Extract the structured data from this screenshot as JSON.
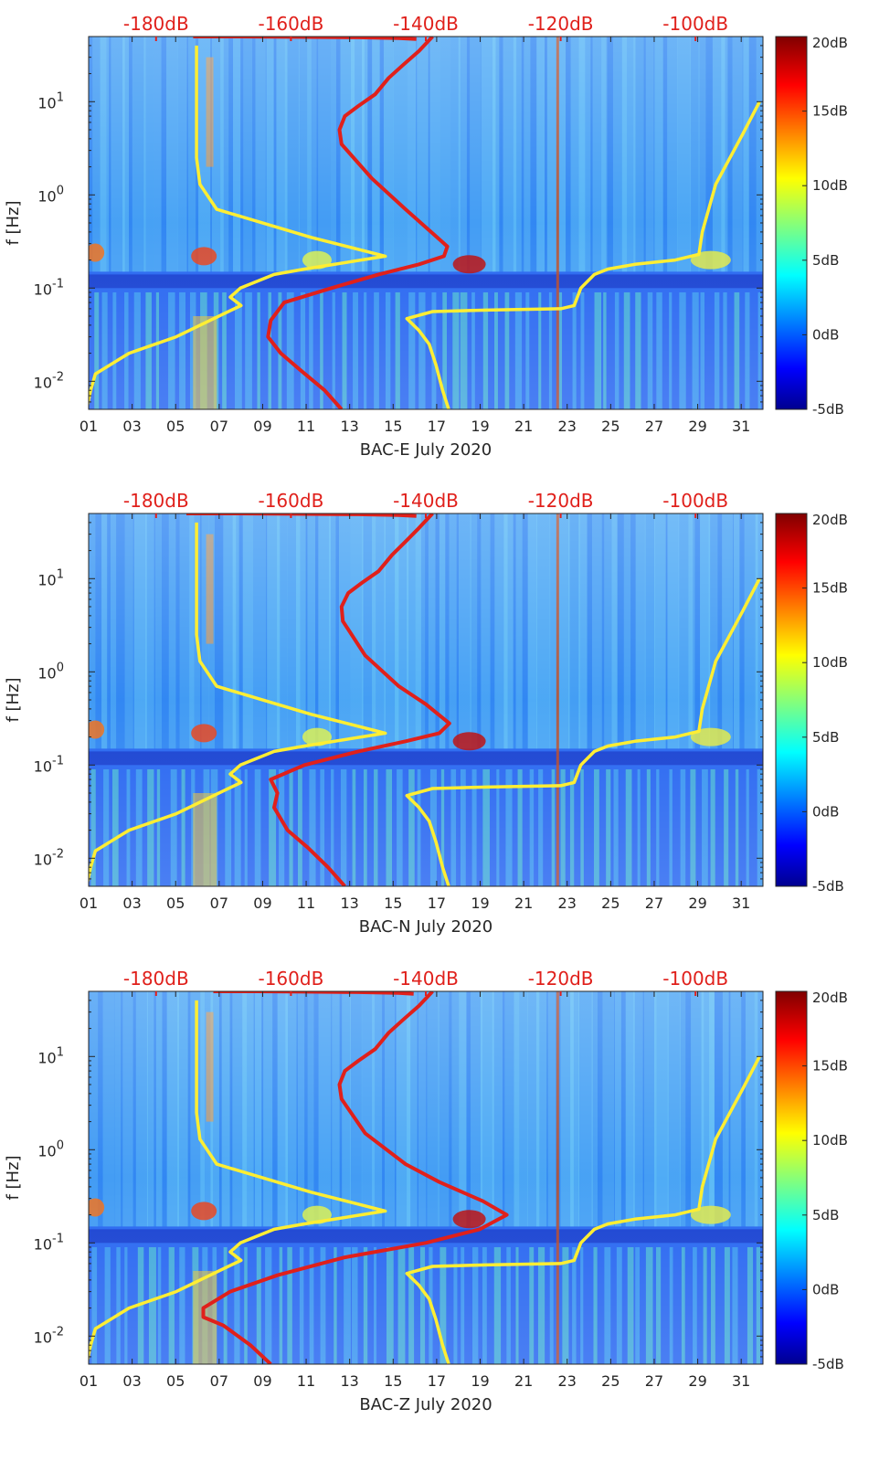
{
  "chart_data": [
    {
      "type": "heatmap",
      "xlabel": "BAC-E July 2020",
      "ylabel": "f [Hz]",
      "x_ticks": [
        "01",
        "03",
        "05",
        "07",
        "09",
        "11",
        "13",
        "15",
        "17",
        "19",
        "21",
        "23",
        "25",
        "27",
        "29",
        "31"
      ],
      "x_range": [
        1,
        32
      ],
      "y_scale": "log",
      "y_range": [
        0.005,
        50
      ],
      "y_ticks": [
        {
          "value": 0.01,
          "base": "10",
          "exp": "-2"
        },
        {
          "value": 0.1,
          "base": "10",
          "exp": "-1"
        },
        {
          "value": 1,
          "base": "10",
          "exp": "0"
        },
        {
          "value": 10,
          "base": "10",
          "exp": "1"
        }
      ],
      "top_axis_labels": [
        "-180dB",
        "-160dB",
        "-140dB",
        "-120dB",
        "-100dB"
      ],
      "top_axis_range_db": [
        -190,
        -90
      ],
      "colorbar": {
        "labels": [
          "20dB",
          "15dB",
          "10dB",
          "5dB",
          "0dB",
          "-5dB"
        ],
        "range": [
          -5,
          20
        ]
      },
      "series": [
        {
          "color": "#ffee33",
          "x_db": [
            -190.3,
            -189.7,
            -189,
            -184,
            -177,
            -172,
            -167.4,
            -169,
            -167.5,
            -162.5,
            -158,
            -146,
            -157,
            -171,
            -173.5,
            -174,
            -174,
            -174,
            -174
          ],
          "f": [
            0.005,
            0.008,
            0.012,
            0.02,
            0.03,
            0.045,
            0.065,
            0.08,
            0.1,
            0.14,
            0.16,
            0.22,
            0.35,
            0.7,
            1.3,
            2.5,
            5,
            15,
            40
          ]
        },
        {
          "color": "#ffee33",
          "x_db": [
            -136.6,
            -137.5,
            -138.5,
            -139.5,
            -141,
            -142.8,
            -139,
            -131,
            -120,
            -118,
            -117,
            -115,
            -113,
            -109,
            -103,
            -99.5,
            -99,
            -97,
            -93,
            -90.5
          ],
          "f": [
            0.005,
            0.008,
            0.015,
            0.025,
            0.035,
            0.047,
            0.056,
            0.058,
            0.06,
            0.065,
            0.1,
            0.14,
            0.16,
            0.18,
            0.2,
            0.23,
            0.4,
            1.3,
            4.5,
            10
          ]
        },
        {
          "color": "#e0201b",
          "x_db": [
            -152.5,
            -155,
            -158.5,
            -161.5,
            -163.4,
            -163,
            -161,
            -154,
            -147,
            -141,
            -137.3,
            -136.8,
            -140,
            -143,
            -148,
            -152.5,
            -152.8,
            -152,
            -150,
            -147.5,
            -145.5,
            -143.3,
            -141,
            -139
          ],
          "f": [
            0.005,
            0.008,
            0.013,
            0.02,
            0.03,
            0.045,
            0.07,
            0.1,
            0.14,
            0.18,
            0.22,
            0.28,
            0.45,
            0.7,
            1.5,
            3.5,
            5,
            7,
            9,
            12,
            18,
            25,
            35,
            50
          ]
        },
        {
          "color": "#e0201b",
          "x_db": [
            -174.5,
            -168,
            -160,
            -150,
            -144,
            -141.4
          ],
          "f": [
            50,
            50,
            49.5,
            49,
            48,
            47
          ]
        }
      ]
    },
    {
      "type": "heatmap",
      "xlabel": "BAC-N July 2020",
      "ylabel": "f [Hz]",
      "x_ticks": [
        "01",
        "03",
        "05",
        "07",
        "09",
        "11",
        "13",
        "15",
        "17",
        "19",
        "21",
        "23",
        "25",
        "27",
        "29",
        "31"
      ],
      "x_range": [
        1,
        32
      ],
      "y_scale": "log",
      "y_range": [
        0.005,
        50
      ],
      "y_ticks": [
        {
          "value": 0.01,
          "base": "10",
          "exp": "-2"
        },
        {
          "value": 0.1,
          "base": "10",
          "exp": "-1"
        },
        {
          "value": 1,
          "base": "10",
          "exp": "0"
        },
        {
          "value": 10,
          "base": "10",
          "exp": "1"
        }
      ],
      "top_axis_labels": [
        "-180dB",
        "-160dB",
        "-140dB",
        "-120dB",
        "-100dB"
      ],
      "top_axis_range_db": [
        -190,
        -90
      ],
      "colorbar": {
        "labels": [
          "20dB",
          "15dB",
          "10dB",
          "5dB",
          "0dB",
          "-5dB"
        ],
        "range": [
          -5,
          20
        ]
      },
      "series": [
        {
          "color": "#ffee33",
          "x_db": [
            -190.3,
            -189.7,
            -189,
            -184,
            -177,
            -172,
            -167.4,
            -169,
            -167.5,
            -162.5,
            -158,
            -146,
            -157,
            -171,
            -173.5,
            -174,
            -174,
            -174,
            -174
          ],
          "f": [
            0.005,
            0.008,
            0.012,
            0.02,
            0.03,
            0.045,
            0.065,
            0.08,
            0.1,
            0.14,
            0.16,
            0.22,
            0.35,
            0.7,
            1.3,
            2.5,
            5,
            15,
            40
          ]
        },
        {
          "color": "#ffee33",
          "x_db": [
            -136.6,
            -137.5,
            -138.5,
            -139.5,
            -141,
            -142.8,
            -139,
            -131,
            -120,
            -118,
            -117,
            -115,
            -113,
            -109,
            -103,
            -99.5,
            -99,
            -97,
            -93,
            -90.5
          ],
          "f": [
            0.005,
            0.008,
            0.015,
            0.025,
            0.035,
            0.047,
            0.056,
            0.058,
            0.06,
            0.065,
            0.1,
            0.14,
            0.16,
            0.18,
            0.2,
            0.23,
            0.4,
            1.3,
            4.5,
            10
          ]
        },
        {
          "color": "#e0201b",
          "x_db": [
            -152,
            -154.5,
            -157.5,
            -160.5,
            -162.5,
            -162,
            -163,
            -158,
            -150,
            -143,
            -138,
            -136.5,
            -140,
            -144,
            -149,
            -152.3,
            -152.5,
            -151.5,
            -149.5,
            -147,
            -145,
            -143,
            -141,
            -139
          ],
          "f": [
            0.005,
            0.008,
            0.013,
            0.02,
            0.035,
            0.05,
            0.07,
            0.1,
            0.14,
            0.18,
            0.22,
            0.28,
            0.45,
            0.7,
            1.5,
            3.5,
            5,
            7,
            9,
            12,
            18,
            25,
            35,
            50
          ]
        },
        {
          "color": "#e0201b",
          "x_db": [
            -175.5,
            -168,
            -160,
            -150,
            -144,
            -141.4
          ],
          "f": [
            50,
            50,
            49.5,
            49,
            48,
            47
          ]
        }
      ]
    },
    {
      "type": "heatmap",
      "xlabel": "BAC-Z July 2020",
      "ylabel": "f [Hz]",
      "x_ticks": [
        "01",
        "03",
        "05",
        "07",
        "09",
        "11",
        "13",
        "15",
        "17",
        "19",
        "21",
        "23",
        "25",
        "27",
        "29",
        "31"
      ],
      "x_range": [
        1,
        32
      ],
      "y_scale": "log",
      "y_range": [
        0.005,
        50
      ],
      "y_ticks": [
        {
          "value": 0.01,
          "base": "10",
          "exp": "-2"
        },
        {
          "value": 0.1,
          "base": "10",
          "exp": "-1"
        },
        {
          "value": 1,
          "base": "10",
          "exp": "0"
        },
        {
          "value": 10,
          "base": "10",
          "exp": "1"
        }
      ],
      "top_axis_labels": [
        "-180dB",
        "-160dB",
        "-140dB",
        "-120dB",
        "-100dB"
      ],
      "top_axis_range_db": [
        -190,
        -90
      ],
      "colorbar": {
        "labels": [
          "20dB",
          "15dB",
          "10dB",
          "5dB",
          "0dB",
          "-5dB"
        ],
        "range": [
          -5,
          20
        ]
      },
      "series": [
        {
          "color": "#ffee33",
          "x_db": [
            -190.3,
            -189.7,
            -189,
            -184,
            -177,
            -172,
            -167.4,
            -169,
            -167.5,
            -162.5,
            -158,
            -146,
            -157,
            -171,
            -173.5,
            -174,
            -174,
            -174,
            -174
          ],
          "f": [
            0.005,
            0.008,
            0.012,
            0.02,
            0.03,
            0.045,
            0.065,
            0.08,
            0.1,
            0.14,
            0.16,
            0.22,
            0.35,
            0.7,
            1.3,
            2.5,
            5,
            15,
            40
          ]
        },
        {
          "color": "#ffee33",
          "x_db": [
            -136.6,
            -137.5,
            -138.5,
            -139.5,
            -141,
            -142.8,
            -139,
            -131,
            -120,
            -118,
            -117,
            -115,
            -113,
            -109,
            -103,
            -99.5,
            -99,
            -97,
            -93,
            -90.5
          ],
          "f": [
            0.005,
            0.008,
            0.015,
            0.025,
            0.035,
            0.047,
            0.056,
            0.058,
            0.06,
            0.065,
            0.1,
            0.14,
            0.16,
            0.18,
            0.2,
            0.23,
            0.4,
            1.3,
            4.5,
            10
          ]
        },
        {
          "color": "#e0201b",
          "x_db": [
            -163,
            -166,
            -170,
            -173,
            -173,
            -169,
            -162,
            -152,
            -140,
            -132,
            -128,
            -131.5,
            -138,
            -143,
            -149,
            -152.5,
            -152.8,
            -152,
            -150,
            -147.5,
            -145.5,
            -143.3,
            -141,
            -139
          ],
          "f": [
            0.005,
            0.008,
            0.013,
            0.016,
            0.02,
            0.03,
            0.045,
            0.07,
            0.1,
            0.14,
            0.2,
            0.28,
            0.45,
            0.7,
            1.5,
            3.5,
            5,
            7,
            9,
            12,
            18,
            25,
            35,
            50
          ]
        },
        {
          "color": "#e0201b",
          "x_db": [
            -171.5,
            -165,
            -158,
            -150,
            -144,
            -141.8
          ],
          "f": [
            50,
            50,
            49.5,
            49,
            48,
            47
          ]
        }
      ]
    }
  ]
}
